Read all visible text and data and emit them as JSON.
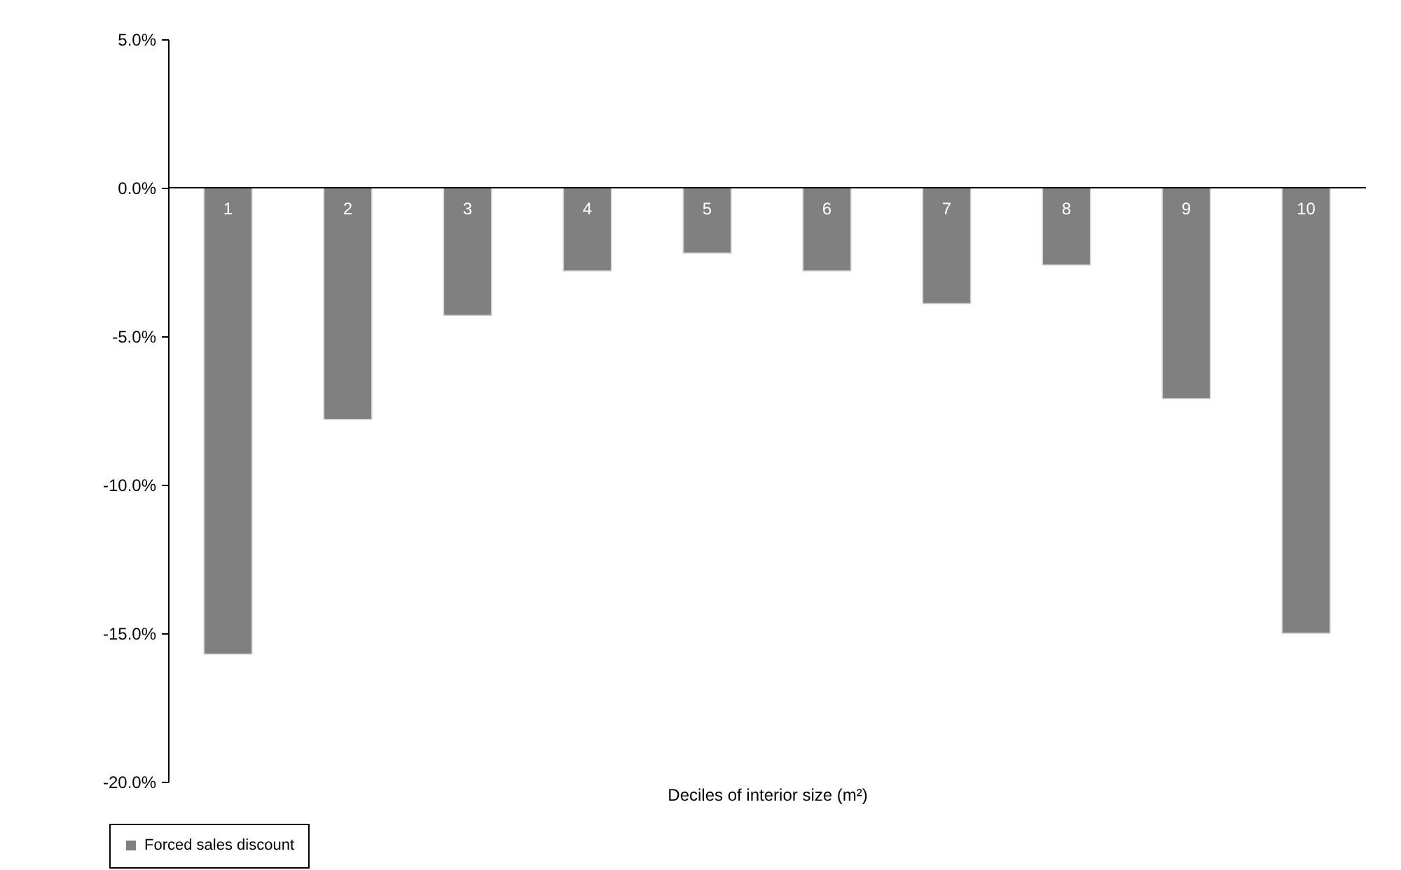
{
  "chart_data": {
    "type": "bar",
    "xlabel": "Deciles of interior size (m²)",
    "categories": [
      "1",
      "2",
      "3",
      "4",
      "5",
      "6",
      "7",
      "8",
      "9",
      "10"
    ],
    "series": [
      {
        "name": "Forced sales discount",
        "color": "#808080",
        "values": [
          -15.7,
          -7.8,
          -4.3,
          -2.8,
          -2.2,
          -2.8,
          -3.9,
          -2.6,
          -7.1,
          -15.0
        ]
      }
    ],
    "ylim": [
      -20,
      5
    ],
    "yticks": [
      {
        "value": -20,
        "label": "-20.0%"
      },
      {
        "value": -15,
        "label": "-15.0%"
      },
      {
        "value": -10,
        "label": "-10.0%"
      },
      {
        "value": -5,
        "label": "-5.0%"
      },
      {
        "value": 0,
        "label": "0.0%"
      },
      {
        "value": 5,
        "label": "5.0%"
      }
    ],
    "grid": false,
    "legend": "bottom left"
  }
}
